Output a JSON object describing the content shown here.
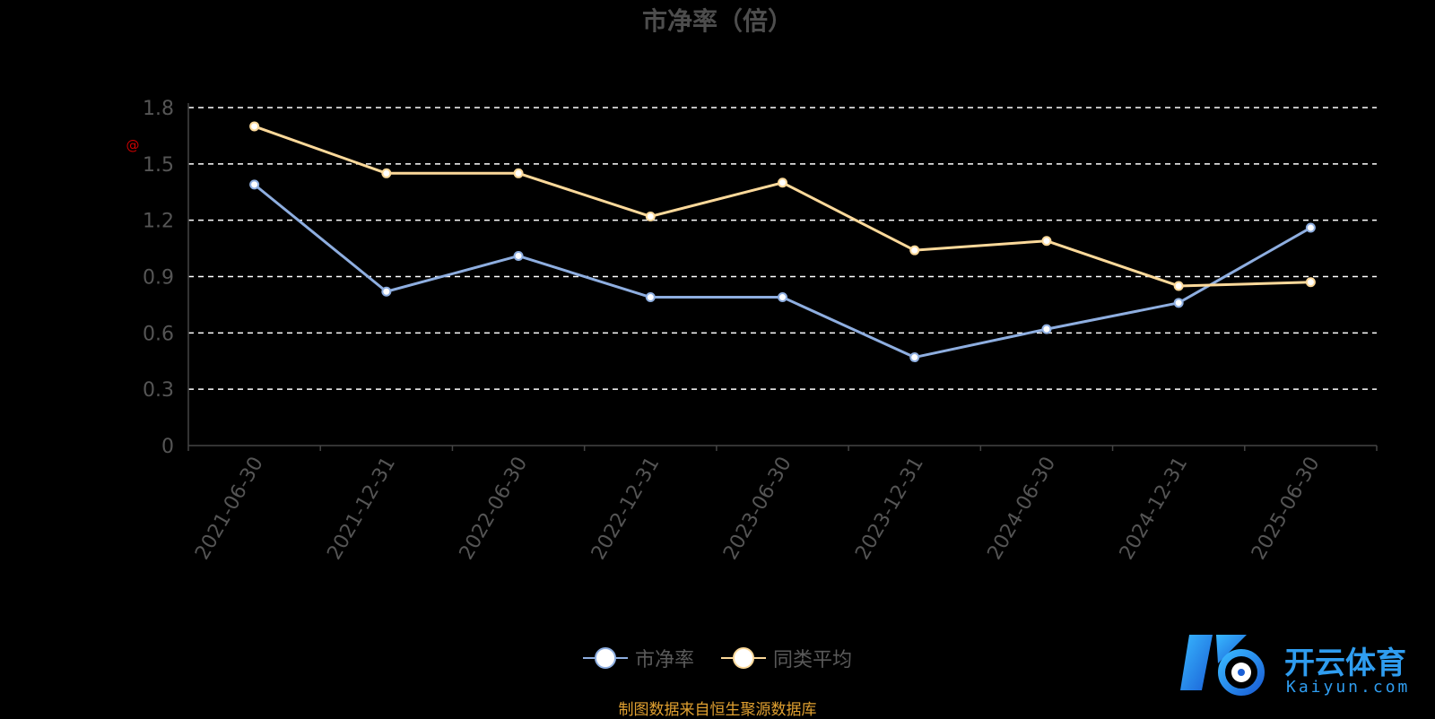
{
  "chart_data": {
    "type": "line",
    "title": "市净率（倍）",
    "categories": [
      "2021-06-30",
      "2021-12-31",
      "2022-06-30",
      "2022-12-31",
      "2023-06-30",
      "2023-12-31",
      "2024-06-30",
      "2024-12-31",
      "2025-06-30"
    ],
    "series": [
      {
        "name": "市净率",
        "color": "#8eaee0",
        "values": [
          1.39,
          0.82,
          1.01,
          0.79,
          0.79,
          0.47,
          0.62,
          0.76,
          1.16
        ]
      },
      {
        "name": "同类平均",
        "color": "#fcd99a",
        "values": [
          1.7,
          1.45,
          1.45,
          1.22,
          1.4,
          1.04,
          1.09,
          0.85,
          0.87
        ]
      }
    ],
    "yticks": [
      "0",
      "0.3",
      "0.6",
      "0.9",
      "1.2",
      "1.5",
      "1.8"
    ],
    "ylim": [
      0,
      1.8
    ],
    "grid": true,
    "legend_position": "bottom-center",
    "watermark": "@"
  },
  "source_note": "制图数据来自恒生聚源数据库",
  "brand": {
    "name": "开云体育",
    "url": "Kaiyun.com"
  },
  "colors": {
    "background": "#000000",
    "title": "#4d4d4d",
    "axis_label": "#555555",
    "grid": "#ffffff",
    "source": "#e0a030",
    "brand_blue": "#2f9df0",
    "watermark": "#cc0000"
  }
}
